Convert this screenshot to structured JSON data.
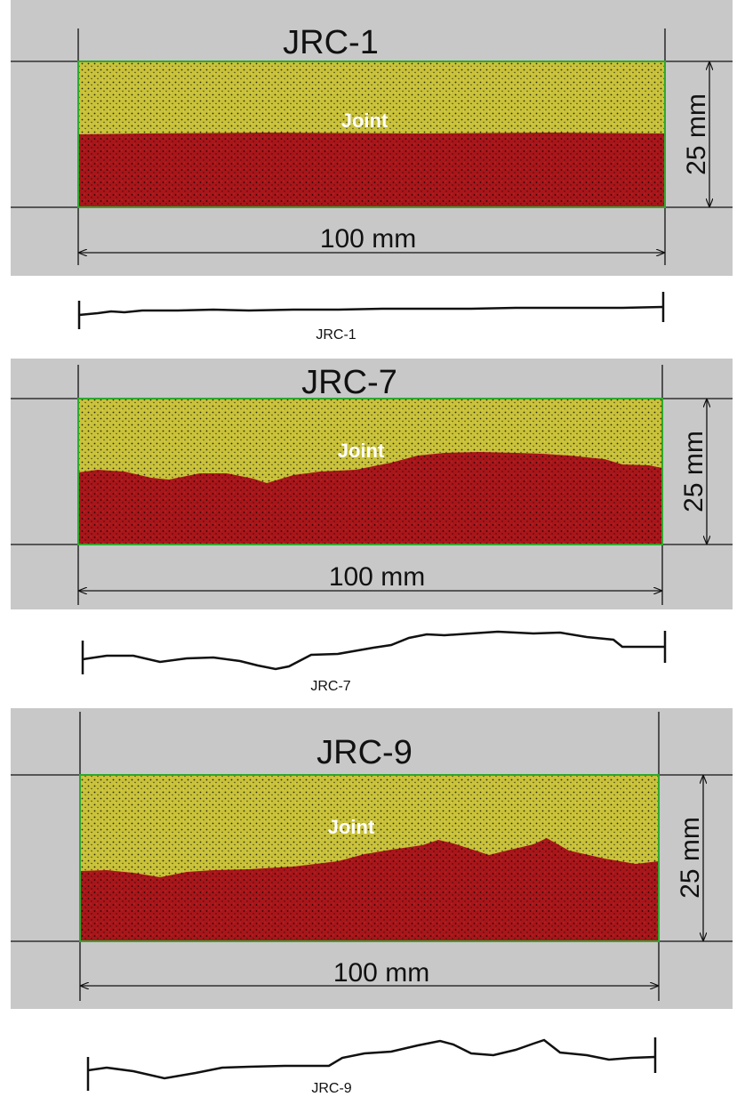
{
  "panels": [
    {
      "title": "JRC-1",
      "joint_label": "Joint",
      "length_label": "100 mm",
      "height_label": "25 mm",
      "profile_label": "JRC-1"
    },
    {
      "title": "JRC-7",
      "joint_label": "Joint",
      "length_label": "100 mm",
      "height_label": "25 mm",
      "profile_label": "JRC-7"
    },
    {
      "title": "JRC-9",
      "joint_label": "Joint",
      "length_label": "100 mm",
      "height_label": "25 mm",
      "profile_label": "JRC-9"
    }
  ],
  "colors": {
    "panel_background": "#c8c8c8",
    "upper_block": "#c9c23a",
    "lower_block": "#a8161a",
    "boundary": "#2fa82f",
    "line": "#111111"
  }
}
